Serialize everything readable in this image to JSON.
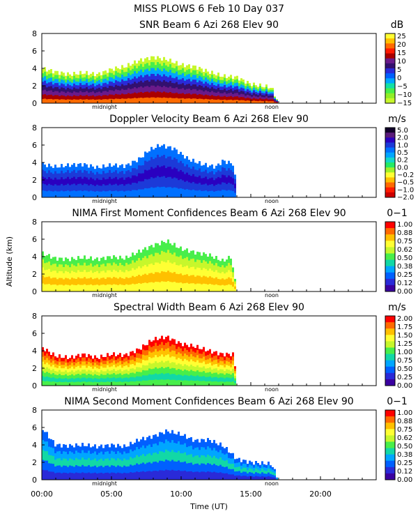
{
  "figure": {
    "title": "MISS PLOWS    6 Feb 10 Day 037",
    "xlabel": "Time (UT)",
    "ylabel": "Altitude (km)",
    "xticks": [
      "00:00",
      "05:00",
      "10:00",
      "15:00",
      "20:00"
    ],
    "marker_midnight": "midnight",
    "marker_noon": "noon"
  },
  "chart_data": [
    {
      "type": "heatmap",
      "title": "SNR Beam 6 Azi 268 Elev 90",
      "unit": "dB",
      "x_range_hours": [
        0,
        24
      ],
      "y_range_km": [
        0,
        8
      ],
      "yticks": [
        "0",
        "2",
        "4",
        "6",
        "8"
      ],
      "colorbar": {
        "labels": [
          "25",
          "20",
          "15",
          "10",
          "5",
          "0",
          "−5",
          "−10",
          "−15"
        ],
        "colors": [
          "#ffff33",
          "#ffc000",
          "#ff6a00",
          "#ff1a00",
          "#aa0000",
          "#6a1a8a",
          "#33106e",
          "#2a2ad8",
          "#0060ff",
          "#00a6ff",
          "#12e0a6",
          "#48ee4a",
          "#90ee26",
          "#c7f72b"
        ]
      },
      "profile": {
        "x": [
          0,
          1,
          2,
          3,
          4,
          5,
          6,
          7,
          8,
          9,
          10,
          11,
          12,
          13,
          14,
          15,
          16.5,
          17
        ],
        "top": [
          4.0,
          3.6,
          3.3,
          3.5,
          3.3,
          3.9,
          4.2,
          4.9,
          5.3,
          5.0,
          4.4,
          4.2,
          3.6,
          3.1,
          3.0,
          2.2,
          1.8,
          0
        ],
        "band_colors": [
          "#c7f72b",
          "#48ee4a",
          "#00a6ff",
          "#2a2ad8",
          "#33106e",
          "#6a1a8a",
          "#aa0000",
          "#ff6a00"
        ]
      }
    },
    {
      "type": "heatmap",
      "title": "Doppler Velocity Beam 6 Azi 268 Elev 90",
      "unit": "m/s",
      "x_range_hours": [
        0,
        24
      ],
      "y_range_km": [
        0,
        8
      ],
      "yticks": [
        "0",
        "2",
        "4",
        "6",
        "8"
      ],
      "colorbar": {
        "labels": [
          "5.0",
          "2.0",
          "1.0",
          "0.5",
          "0.2",
          "0.0",
          "−0.2",
          "−0.5",
          "−1.0",
          "−2.0"
        ],
        "colors": [
          "#10002a",
          "#5a1a7a",
          "#2a00c0",
          "#1c3ad8",
          "#0070ff",
          "#00a6ff",
          "#14d8c8",
          "#26ea66",
          "#9ef02a",
          "#ffff33",
          "#ffc000",
          "#ff6a00",
          "#ff1a00",
          "#cc0000"
        ]
      },
      "profile": {
        "x": [
          0,
          1,
          2,
          3,
          4,
          5,
          6,
          7,
          7.7,
          8.5,
          9.5,
          10.5,
          11.5,
          12.5,
          13.0,
          13.8,
          14.0
        ],
        "top": [
          3.8,
          3.5,
          3.7,
          3.8,
          3.4,
          3.7,
          3.6,
          4.4,
          5.4,
          6.0,
          5.6,
          4.4,
          3.8,
          3.5,
          4.2,
          3.8,
          0
        ],
        "band_colors": [
          "#0070ff",
          "#1c3ad8",
          "#2a00c0",
          "#1c3ad8",
          "#0070ff"
        ]
      }
    },
    {
      "type": "heatmap",
      "title": "NIMA First Moment Confidences Beam 6 Azi 268 Elev 90",
      "unit": "0−1",
      "x_range_hours": [
        0,
        24
      ],
      "y_range_km": [
        0,
        8
      ],
      "yticks": [
        "0",
        "2",
        "4",
        "6",
        "8"
      ],
      "colorbar": {
        "labels": [
          "1.00",
          "0.88",
          "0.75",
          "0.62",
          "0.50",
          "0.38",
          "0.25",
          "0.12",
          "0.00"
        ],
        "colors": [
          "#ff0000",
          "#ff6a00",
          "#ffc000",
          "#ffff33",
          "#c7f72b",
          "#48ee4a",
          "#12d8a6",
          "#00a6ff",
          "#0060ff",
          "#2a2ad8",
          "#3a00a0"
        ]
      },
      "profile": {
        "x": [
          0,
          1,
          2,
          3,
          4,
          5,
          6,
          7,
          8,
          9,
          10,
          11,
          12,
          13,
          13.6,
          14.0
        ],
        "top": [
          4.4,
          3.8,
          3.7,
          3.9,
          3.7,
          4.0,
          3.8,
          4.6,
          5.3,
          5.8,
          4.9,
          4.5,
          4.2,
          3.5,
          4.0,
          0
        ],
        "band_colors": [
          "#48ee4a",
          "#c7f72b",
          "#ffff33",
          "#ffc000",
          "#ffff33"
        ]
      }
    },
    {
      "type": "heatmap",
      "title": "Spectral Width Beam 6 Azi 268 Elev 90",
      "unit": "m/s",
      "x_range_hours": [
        0,
        24
      ],
      "y_range_km": [
        0,
        8
      ],
      "yticks": [
        "0",
        "2",
        "4",
        "6",
        "8"
      ],
      "colorbar": {
        "labels": [
          "2.00",
          "1.75",
          "1.50",
          "1.25",
          "1.00",
          "0.75",
          "0.50",
          "0.25",
          "0.00"
        ],
        "colors": [
          "#ff0000",
          "#ff6a00",
          "#ffc000",
          "#ffff33",
          "#c7f72b",
          "#48ee4a",
          "#12d8a6",
          "#00a6ff",
          "#0060ff",
          "#2a2ad8",
          "#3a00a0"
        ]
      },
      "profile": {
        "x": [
          0,
          1,
          2,
          3,
          4,
          5,
          6,
          7,
          8,
          9,
          10,
          11,
          12,
          13,
          13.8,
          14.0
        ],
        "top": [
          4.4,
          3.4,
          3.2,
          3.6,
          3.2,
          3.6,
          3.5,
          4.2,
          5.3,
          5.6,
          4.8,
          4.5,
          4.0,
          3.6,
          3.6,
          0
        ],
        "band_colors": [
          "#ff0000",
          "#ff6a00",
          "#ffc000",
          "#ffff33",
          "#c7f72b",
          "#48ee4a",
          "#12d8a6",
          "#48ee4a"
        ]
      }
    },
    {
      "type": "heatmap",
      "title": "NIMA Second Moment Confidences Beam 6 Azi 268 Elev 90",
      "unit": "0−1",
      "x_range_hours": [
        0,
        24
      ],
      "y_range_km": [
        0,
        8
      ],
      "yticks": [
        "0",
        "2",
        "4",
        "6",
        "8"
      ],
      "colorbar": {
        "labels": [
          "1.00",
          "0.88",
          "0.75",
          "0.62",
          "0.50",
          "0.38",
          "0.25",
          "0.12",
          "0.00"
        ],
        "colors": [
          "#ff0000",
          "#ff6a00",
          "#ffc000",
          "#ffff33",
          "#c7f72b",
          "#48ee4a",
          "#12d8a6",
          "#00a6ff",
          "#0060ff",
          "#2a2ad8",
          "#3a00a0"
        ]
      },
      "profile": {
        "x": [
          0,
          1,
          2,
          3,
          4,
          5,
          6,
          7,
          8,
          9,
          10,
          11,
          12,
          13,
          13.5,
          14,
          15,
          16.5,
          17
        ],
        "top": [
          6.0,
          4.0,
          3.9,
          4.0,
          3.8,
          4.0,
          3.8,
          4.6,
          5.0,
          5.6,
          5.2,
          4.5,
          4.6,
          3.9,
          3.2,
          2.4,
          2.0,
          1.8,
          0
        ],
        "band_colors": [
          "#0060ff",
          "#00a6ff",
          "#12d8a6",
          "#0060ff",
          "#2a2ad8"
        ]
      }
    }
  ]
}
